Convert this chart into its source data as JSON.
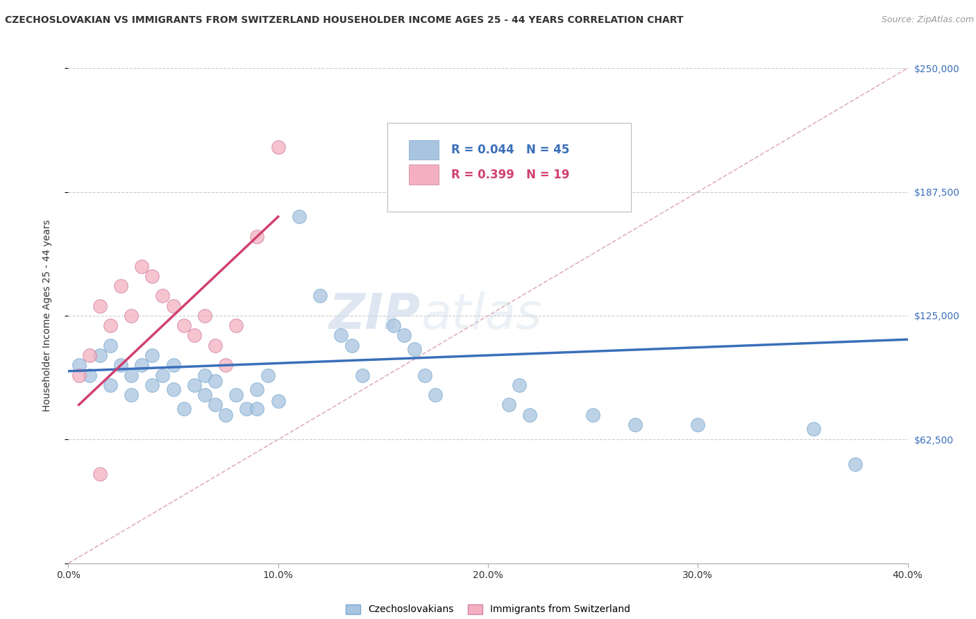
{
  "title": "CZECHOSLOVAKIAN VS IMMIGRANTS FROM SWITZERLAND HOUSEHOLDER INCOME AGES 25 - 44 YEARS CORRELATION CHART",
  "source": "Source: ZipAtlas.com",
  "ylabel_label": "Householder Income Ages 25 - 44 years",
  "xlim": [
    0.0,
    0.4
  ],
  "ylim": [
    0,
    250000
  ],
  "yticks": [
    0,
    62500,
    125000,
    187500,
    250000
  ],
  "xticks": [
    0.0,
    0.1,
    0.2,
    0.3,
    0.4
  ],
  "blue_R": "0.044",
  "blue_N": "45",
  "pink_R": "0.399",
  "pink_N": "19",
  "blue_color": "#a8c4e0",
  "pink_color": "#f4b0c0",
  "blue_line_color": "#3a6fba",
  "pink_line_color": "#d04070",
  "diag_line_color": "#e0b0b8",
  "legend_label_blue": "Czechoslovakians",
  "legend_label_pink": "Immigrants from Switzerland",
  "watermark_zip": "ZIP",
  "watermark_atlas": "atlas",
  "blue_scatter_x": [
    0.005,
    0.01,
    0.015,
    0.02,
    0.02,
    0.025,
    0.03,
    0.03,
    0.035,
    0.04,
    0.04,
    0.045,
    0.05,
    0.05,
    0.055,
    0.06,
    0.065,
    0.065,
    0.07,
    0.07,
    0.075,
    0.08,
    0.085,
    0.09,
    0.09,
    0.095,
    0.1,
    0.11,
    0.12,
    0.13,
    0.135,
    0.14,
    0.155,
    0.16,
    0.165,
    0.17,
    0.175,
    0.21,
    0.215,
    0.22,
    0.25,
    0.27,
    0.3,
    0.355,
    0.375
  ],
  "blue_scatter_y": [
    100000,
    95000,
    105000,
    90000,
    110000,
    100000,
    95000,
    85000,
    100000,
    105000,
    90000,
    95000,
    100000,
    88000,
    78000,
    90000,
    85000,
    95000,
    80000,
    92000,
    75000,
    85000,
    78000,
    88000,
    78000,
    95000,
    82000,
    175000,
    135000,
    115000,
    110000,
    95000,
    120000,
    115000,
    108000,
    95000,
    85000,
    80000,
    90000,
    75000,
    75000,
    70000,
    70000,
    68000,
    50000
  ],
  "pink_scatter_x": [
    0.005,
    0.01,
    0.015,
    0.02,
    0.025,
    0.03,
    0.035,
    0.04,
    0.045,
    0.05,
    0.055,
    0.06,
    0.065,
    0.07,
    0.075,
    0.08,
    0.09,
    0.1,
    0.015
  ],
  "pink_scatter_y": [
    95000,
    105000,
    130000,
    120000,
    140000,
    125000,
    150000,
    145000,
    135000,
    130000,
    120000,
    115000,
    125000,
    110000,
    100000,
    120000,
    165000,
    210000,
    45000
  ],
  "blue_trend_x": [
    0.0,
    0.4
  ],
  "blue_trend_y": [
    97000,
    113000
  ],
  "pink_trend_x": [
    0.005,
    0.1
  ],
  "pink_trend_y": [
    80000,
    175000
  ],
  "diag_line_x": [
    0.0,
    0.4
  ],
  "diag_line_y": [
    0,
    250000
  ],
  "background_color": "#ffffff",
  "grid_color": "#cccccc"
}
